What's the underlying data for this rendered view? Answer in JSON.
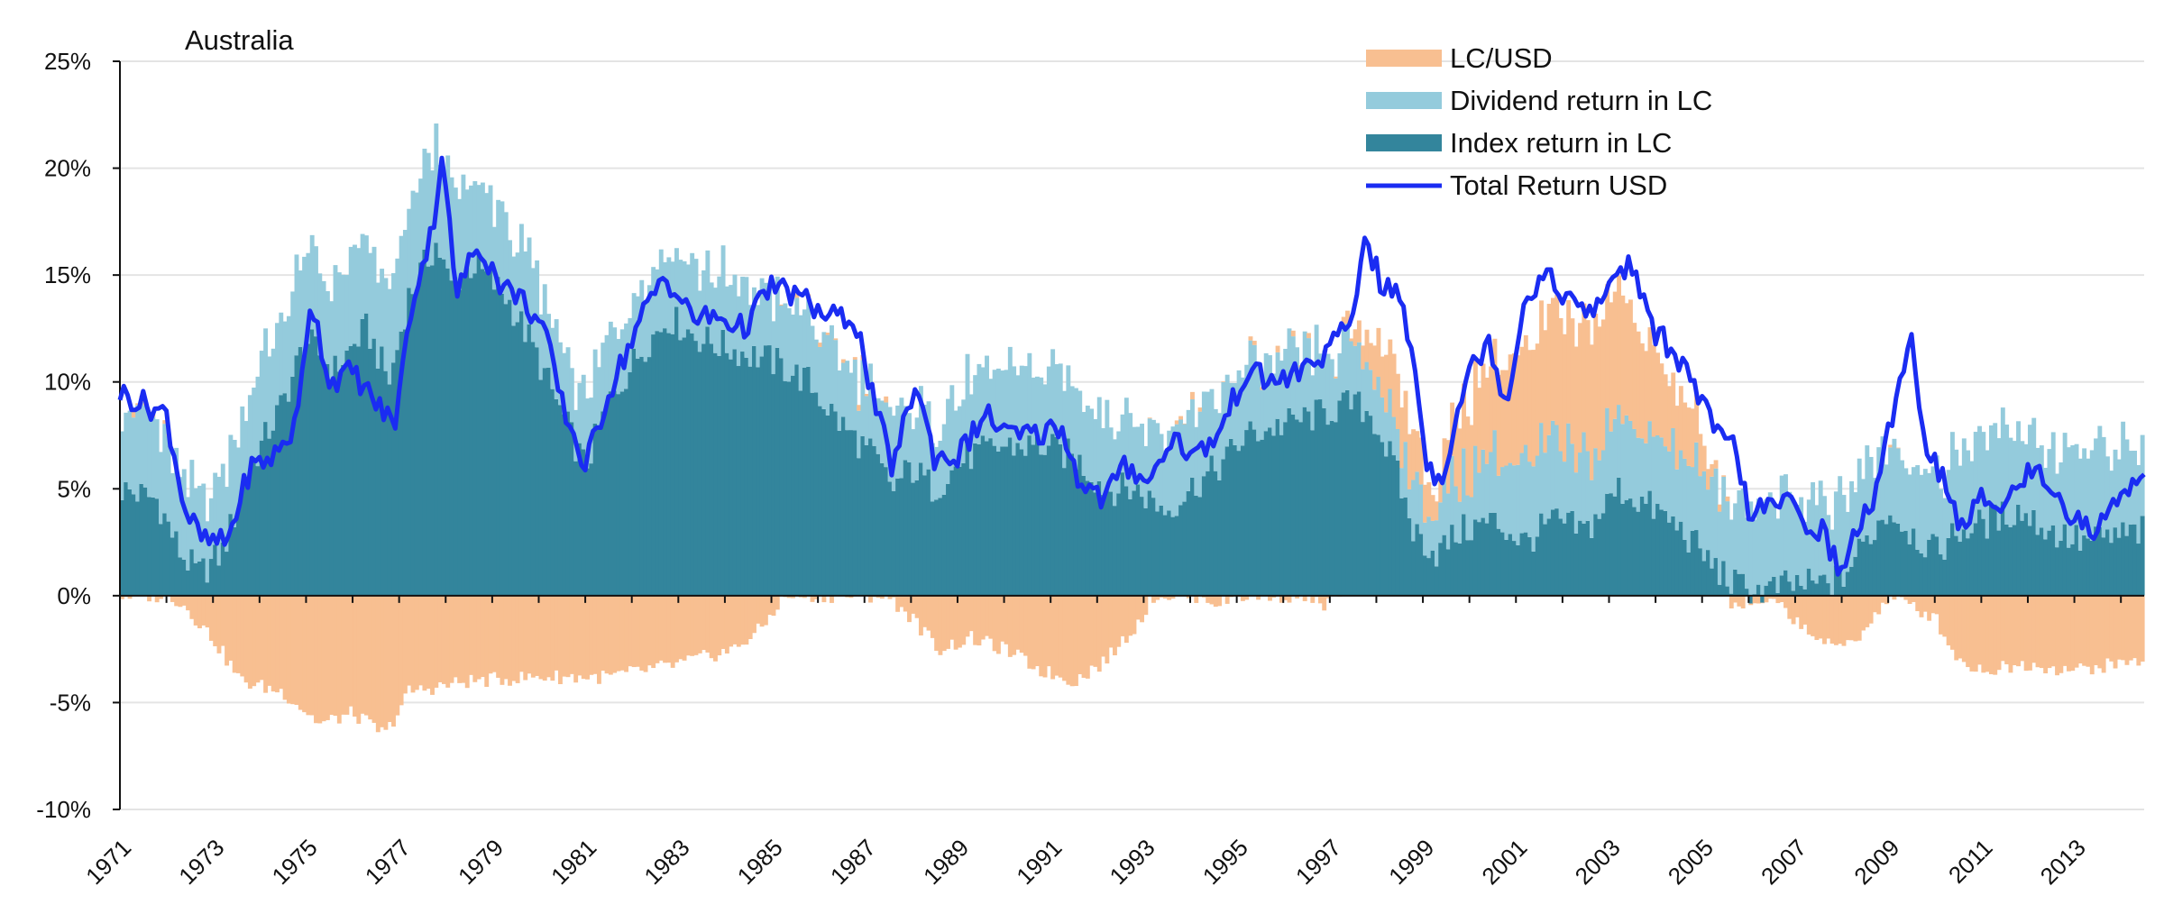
{
  "chart_data": {
    "type": "bar",
    "title": "Australia",
    "xlabel": "",
    "ylabel": "",
    "ylim": [
      -10,
      25
    ],
    "xlim": [
      1971,
      2014.5
    ],
    "grid": true,
    "legend_position": "top-right",
    "y_ticks": [
      25,
      20,
      15,
      10,
      5,
      0,
      -5,
      -10
    ],
    "y_tick_labels": [
      "25%",
      "20%",
      "15%",
      "10%",
      "5%",
      "0%",
      "-5%",
      "-10%"
    ],
    "x_tick_labels": [
      "1971",
      "1973",
      "1975",
      "1977",
      "1979",
      "1981",
      "1983",
      "1985",
      "1987",
      "1989",
      "1991",
      "1993",
      "1995",
      "1997",
      "1999",
      "2001",
      "2003",
      "2005",
      "2007",
      "2009",
      "2011",
      "2013"
    ],
    "series": [
      {
        "name": "LC/USD",
        "kind": "stacked-bar",
        "color": "#f8bf91"
      },
      {
        "name": "Dividend return in LC",
        "kind": "stacked-bar",
        "color": "#94cbdc"
      },
      {
        "name": "Index return in LC",
        "kind": "stacked-bar",
        "color": "#33859c"
      },
      {
        "name": "Total Return USD",
        "kind": "line",
        "color": "#1a2cf2"
      }
    ],
    "series_keypoints": {
      "index_lc": [
        [
          1971,
          5
        ],
        [
          1971.8,
          4.5
        ],
        [
          1972.3,
          2
        ],
        [
          1972.7,
          1
        ],
        [
          1973.2,
          2
        ],
        [
          1973.8,
          6
        ],
        [
          1974.5,
          9
        ],
        [
          1975,
          12
        ],
        [
          1975.6,
          10.5
        ],
        [
          1976.3,
          12.5
        ],
        [
          1976.8,
          10
        ],
        [
          1977.2,
          14
        ],
        [
          1977.8,
          16.5
        ],
        [
          1978.1,
          14.5
        ],
        [
          1978.6,
          15.5
        ],
        [
          1979.3,
          14
        ],
        [
          1979.8,
          12
        ],
        [
          1980.5,
          8.5
        ],
        [
          1981,
          6
        ],
        [
          1981.5,
          9
        ],
        [
          1982.2,
          11.5
        ],
        [
          1982.8,
          13
        ],
        [
          1983.5,
          12
        ],
        [
          1984.2,
          11.5
        ],
        [
          1985,
          11
        ],
        [
          1985.8,
          10
        ],
        [
          1986.5,
          8
        ],
        [
          1987.2,
          6.5
        ],
        [
          1987.6,
          5
        ],
        [
          1988,
          6
        ],
        [
          1988.5,
          5
        ],
        [
          1989.2,
          6.5
        ],
        [
          1990,
          7
        ],
        [
          1990.8,
          7
        ],
        [
          1991.5,
          6.5
        ],
        [
          1992.2,
          5
        ],
        [
          1992.8,
          5
        ],
        [
          1993.5,
          4
        ],
        [
          1994,
          5
        ],
        [
          1994.6,
          6
        ],
        [
          1995.2,
          7.5
        ],
        [
          1996,
          8
        ],
        [
          1996.8,
          8.5
        ],
        [
          1997.5,
          9
        ],
        [
          1997.9,
          8.5
        ],
        [
          1998.4,
          6
        ],
        [
          1998.8,
          3
        ],
        [
          1999.3,
          2
        ],
        [
          1999.8,
          3
        ],
        [
          2000.5,
          3.5
        ],
        [
          2001.2,
          2.5
        ],
        [
          2001.8,
          3.5
        ],
        [
          2002.5,
          3
        ],
        [
          2003.2,
          5
        ],
        [
          2004,
          4
        ],
        [
          2004.6,
          3
        ],
        [
          2005.2,
          1.5
        ],
        [
          2005.7,
          0.5
        ],
        [
          2006.3,
          0.2
        ],
        [
          2006.9,
          0.5
        ],
        [
          2007.5,
          0.5
        ],
        [
          2008,
          0.8
        ],
        [
          2008.5,
          2.5
        ],
        [
          2009,
          4
        ],
        [
          2009.5,
          3
        ],
        [
          2010,
          2
        ],
        [
          2010.5,
          3
        ],
        [
          2011.2,
          3.5
        ],
        [
          2011.8,
          4
        ],
        [
          2012.5,
          3
        ],
        [
          2013.2,
          2.5
        ],
        [
          2014.5,
          3
        ]
      ],
      "dividend_lc": [
        [
          1971,
          4
        ],
        [
          1972,
          3.5
        ],
        [
          1973,
          3.5
        ],
        [
          1974.5,
          4
        ],
        [
          1975.5,
          4
        ],
        [
          1976.5,
          4
        ],
        [
          1977.2,
          4
        ],
        [
          1977.8,
          5
        ],
        [
          1978.3,
          4
        ],
        [
          1979.5,
          3.5
        ],
        [
          1981,
          3
        ],
        [
          1983,
          3.5
        ],
        [
          1985,
          3
        ],
        [
          1987,
          3
        ],
        [
          1988,
          3
        ],
        [
          1990,
          3.5
        ],
        [
          1992,
          3.5
        ],
        [
          1994,
          3.5
        ],
        [
          1996,
          3
        ],
        [
          1997.5,
          2.5
        ],
        [
          1999,
          2
        ],
        [
          2001,
          3.5
        ],
        [
          2003,
          3.5
        ],
        [
          2005,
          3.5
        ],
        [
          2006,
          4
        ],
        [
          2007,
          4
        ],
        [
          2008,
          3.5
        ],
        [
          2009,
          3.5
        ],
        [
          2010,
          3.5
        ],
        [
          2011,
          4
        ],
        [
          2012,
          4
        ],
        [
          2013,
          4
        ],
        [
          2014.5,
          4
        ]
      ],
      "fx_lc_usd": [
        [
          1971,
          0
        ],
        [
          1972.1,
          0
        ],
        [
          1972.4,
          -0.5
        ],
        [
          1973,
          -2
        ],
        [
          1973.6,
          -4
        ],
        [
          1974.5,
          -4.5
        ],
        [
          1975.3,
          -6
        ],
        [
          1976,
          -5.5
        ],
        [
          1976.7,
          -6.5
        ],
        [
          1977.2,
          -4.5
        ],
        [
          1978.5,
          -4
        ],
        [
          1980,
          -3.8
        ],
        [
          1981.5,
          -3.8
        ],
        [
          1983,
          -3.2
        ],
        [
          1984.2,
          -2.5
        ],
        [
          1984.8,
          -1.5
        ],
        [
          1985.2,
          -0.2
        ],
        [
          1985.4,
          0
        ],
        [
          1987.5,
          0
        ],
        [
          1988,
          -1
        ],
        [
          1988.6,
          -2.5
        ],
        [
          1989.3,
          -2
        ],
        [
          1990,
          -2.5
        ],
        [
          1990.8,
          -3.5
        ],
        [
          1991.5,
          -4
        ],
        [
          1992.2,
          -3
        ],
        [
          1992.9,
          -1.2
        ],
        [
          1993.2,
          0
        ],
        [
          1994.3,
          0
        ],
        [
          1994.6,
          -0.4
        ],
        [
          1995,
          0
        ],
        [
          1996.5,
          0
        ],
        [
          1996.8,
          -0.5
        ],
        [
          1997.2,
          0
        ],
        [
          1997.6,
          0.6
        ],
        [
          1998,
          2
        ],
        [
          1998.5,
          3
        ],
        [
          1998.9,
          2
        ],
        [
          1999.3,
          1
        ],
        [
          1999.7,
          3
        ],
        [
          2000.3,
          4
        ],
        [
          2001,
          5
        ],
        [
          2001.8,
          6
        ],
        [
          2002.5,
          6
        ],
        [
          2003.2,
          6
        ],
        [
          2003.6,
          5
        ],
        [
          2004.3,
          3
        ],
        [
          2004.8,
          2.5
        ],
        [
          2005.2,
          0.6
        ],
        [
          2005.5,
          0
        ],
        [
          2005.7,
          -0.5
        ],
        [
          2006.2,
          -0.2
        ],
        [
          2006.7,
          -0.5
        ],
        [
          2007.2,
          -1.5
        ],
        [
          2007.8,
          -2.5
        ],
        [
          2008.3,
          -2
        ],
        [
          2008.7,
          -1
        ],
        [
          2009,
          0
        ],
        [
          2010,
          -1
        ],
        [
          2010.5,
          -3
        ],
        [
          2011,
          -3.5
        ],
        [
          2012,
          -3.2
        ],
        [
          2013,
          -3.5
        ],
        [
          2014.5,
          -3
        ]
      ],
      "total_return_usd": [
        [
          1971,
          9.5
        ],
        [
          1971.5,
          9
        ],
        [
          1972,
          8.5
        ],
        [
          1972.4,
          4
        ],
        [
          1972.8,
          2.5
        ],
        [
          1973.3,
          2.5
        ],
        [
          1973.8,
          6
        ],
        [
          1974.3,
          6.5
        ],
        [
          1974.8,
          8
        ],
        [
          1975.1,
          14
        ],
        [
          1975.5,
          10
        ],
        [
          1976,
          10.5
        ],
        [
          1976.5,
          9
        ],
        [
          1976.9,
          8
        ],
        [
          1977.3,
          14
        ],
        [
          1977.7,
          17
        ],
        [
          1977.95,
          21
        ],
        [
          1978.2,
          14
        ],
        [
          1978.7,
          16.5
        ],
        [
          1979.2,
          14.5
        ],
        [
          1979.6,
          14
        ],
        [
          1980.1,
          12.5
        ],
        [
          1980.5,
          9
        ],
        [
          1981,
          6
        ],
        [
          1981.5,
          9.5
        ],
        [
          1982.2,
          13
        ],
        [
          1982.7,
          15
        ],
        [
          1983.3,
          13
        ],
        [
          1983.9,
          13
        ],
        [
          1984.4,
          12.5
        ],
        [
          1985,
          14.5
        ],
        [
          1985.6,
          14
        ],
        [
          1986.2,
          13
        ],
        [
          1986.8,
          13
        ],
        [
          1987.2,
          9
        ],
        [
          1987.6,
          6
        ],
        [
          1988.1,
          10
        ],
        [
          1988.5,
          6.5
        ],
        [
          1989,
          6.5
        ],
        [
          1989.6,
          8.5
        ],
        [
          1990.1,
          7.5
        ],
        [
          1990.7,
          7.5
        ],
        [
          1991.2,
          8
        ],
        [
          1991.6,
          5.5
        ],
        [
          1992.1,
          4.5
        ],
        [
          1992.6,
          6
        ],
        [
          1993.2,
          5.5
        ],
        [
          1993.6,
          7.5
        ],
        [
          1994.1,
          6.5
        ],
        [
          1994.6,
          7.5
        ],
        [
          1995.2,
          10.5
        ],
        [
          1995.8,
          10
        ],
        [
          1996.4,
          10.5
        ],
        [
          1997,
          11.5
        ],
        [
          1997.5,
          13
        ],
        [
          1997.75,
          17
        ],
        [
          1998.1,
          14.5
        ],
        [
          1998.5,
          14
        ],
        [
          1998.8,
          11
        ],
        [
          1999.1,
          6
        ],
        [
          1999.4,
          5.5
        ],
        [
          1999.9,
          10
        ],
        [
          2000.4,
          12
        ],
        [
          2000.8,
          9
        ],
        [
          2001.2,
          14
        ],
        [
          2001.6,
          15
        ],
        [
          2002.1,
          14
        ],
        [
          2002.6,
          13
        ],
        [
          2003.1,
          15
        ],
        [
          2003.5,
          15.5
        ],
        [
          2003.9,
          12.5
        ],
        [
          2004.4,
          11.5
        ],
        [
          2004.9,
          9.5
        ],
        [
          2005.3,
          7.5
        ],
        [
          2005.7,
          7
        ],
        [
          2006,
          4
        ],
        [
          2006.4,
          4
        ],
        [
          2006.8,
          4.5
        ],
        [
          2007.2,
          3.5
        ],
        [
          2007.6,
          3
        ],
        [
          2008,
          1
        ],
        [
          2008.4,
          3.5
        ],
        [
          2008.8,
          5
        ],
        [
          2009.2,
          10
        ],
        [
          2009.5,
          12
        ],
        [
          2009.8,
          7
        ],
        [
          2010.2,
          5.5
        ],
        [
          2010.6,
          3
        ],
        [
          2011,
          4.5
        ],
        [
          2011.6,
          4.5
        ],
        [
          2012.1,
          6
        ],
        [
          2012.6,
          5
        ],
        [
          2013,
          3.5
        ],
        [
          2013.5,
          3
        ],
        [
          2014,
          5
        ],
        [
          2014.5,
          5.5
        ]
      ]
    }
  }
}
